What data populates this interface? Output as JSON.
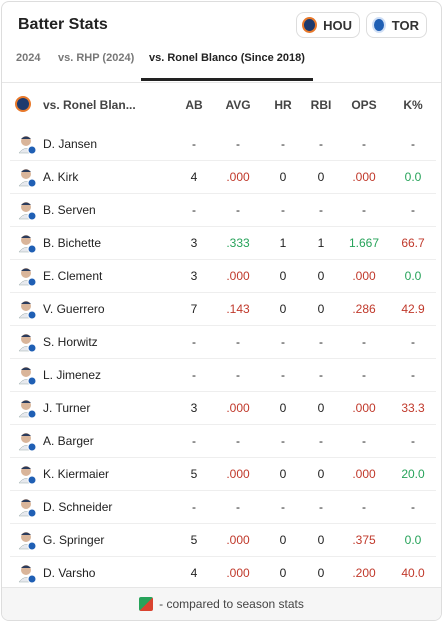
{
  "header": {
    "title": "Batter Stats",
    "teams": [
      "HOU",
      "TOR"
    ]
  },
  "tabs": {
    "items": [
      "2024",
      "vs. RHP (2024)",
      "vs. Ronel Blanco (Since 2018)"
    ],
    "active": 2
  },
  "table": {
    "columns": [
      "vs. Ronel Blan...",
      "AB",
      "AVG",
      "HR",
      "RBI",
      "OPS",
      "K%"
    ],
    "rows": [
      {
        "player": "D. Jansen",
        "cells": [
          "-",
          "-",
          "-",
          "-",
          "-",
          "-"
        ],
        "colors": [
          null,
          null,
          null,
          null,
          null,
          null
        ]
      },
      {
        "player": "A. Kirk",
        "cells": [
          "4",
          ".000",
          "0",
          "0",
          ".000",
          "0.0"
        ],
        "colors": [
          null,
          "#c0392b",
          null,
          null,
          "#c0392b",
          "#27a35a"
        ]
      },
      {
        "player": "B. Serven",
        "cells": [
          "-",
          "-",
          "-",
          "-",
          "-",
          "-"
        ],
        "colors": [
          null,
          null,
          null,
          null,
          null,
          null
        ]
      },
      {
        "player": "B. Bichette",
        "cells": [
          "3",
          ".333",
          "1",
          "1",
          "1.667",
          "66.7"
        ],
        "colors": [
          null,
          "#27a35a",
          null,
          null,
          "#27a35a",
          "#c0392b"
        ]
      },
      {
        "player": "E. Clement",
        "cells": [
          "3",
          ".000",
          "0",
          "0",
          ".000",
          "0.0"
        ],
        "colors": [
          null,
          "#c0392b",
          null,
          null,
          "#c0392b",
          "#27a35a"
        ]
      },
      {
        "player": "V. Guerrero",
        "cells": [
          "7",
          ".143",
          "0",
          "0",
          ".286",
          "42.9"
        ],
        "colors": [
          null,
          "#c0392b",
          null,
          null,
          "#c0392b",
          "#c0392b"
        ]
      },
      {
        "player": "S. Horwitz",
        "cells": [
          "-",
          "-",
          "-",
          "-",
          "-",
          "-"
        ],
        "colors": [
          null,
          null,
          null,
          null,
          null,
          null
        ]
      },
      {
        "player": "L. Jimenez",
        "cells": [
          "-",
          "-",
          "-",
          "-",
          "-",
          "-"
        ],
        "colors": [
          null,
          null,
          null,
          null,
          null,
          null
        ]
      },
      {
        "player": "J. Turner",
        "cells": [
          "3",
          ".000",
          "0",
          "0",
          ".000",
          "33.3"
        ],
        "colors": [
          null,
          "#c0392b",
          null,
          null,
          "#c0392b",
          "#c0392b"
        ]
      },
      {
        "player": "A. Barger",
        "cells": [
          "-",
          "-",
          "-",
          "-",
          "-",
          "-"
        ],
        "colors": [
          null,
          null,
          null,
          null,
          null,
          null
        ]
      },
      {
        "player": "K. Kiermaier",
        "cells": [
          "5",
          ".000",
          "0",
          "0",
          ".000",
          "20.0"
        ],
        "colors": [
          null,
          "#c0392b",
          null,
          null,
          "#c0392b",
          "#27a35a"
        ]
      },
      {
        "player": "D. Schneider",
        "cells": [
          "-",
          "-",
          "-",
          "-",
          "-",
          "-"
        ],
        "colors": [
          null,
          null,
          null,
          null,
          null,
          null
        ]
      },
      {
        "player": "G. Springer",
        "cells": [
          "5",
          ".000",
          "0",
          "0",
          ".375",
          "0.0"
        ],
        "colors": [
          null,
          "#c0392b",
          null,
          null,
          "#c0392b",
          "#27a35a"
        ]
      },
      {
        "player": "D. Varsho",
        "cells": [
          "4",
          ".000",
          "0",
          "0",
          ".200",
          "40.0"
        ],
        "colors": [
          null,
          "#c0392b",
          null,
          null,
          "#c0392b",
          "#c0392b"
        ]
      }
    ]
  },
  "footer": {
    "legend": "- compared to season stats"
  }
}
